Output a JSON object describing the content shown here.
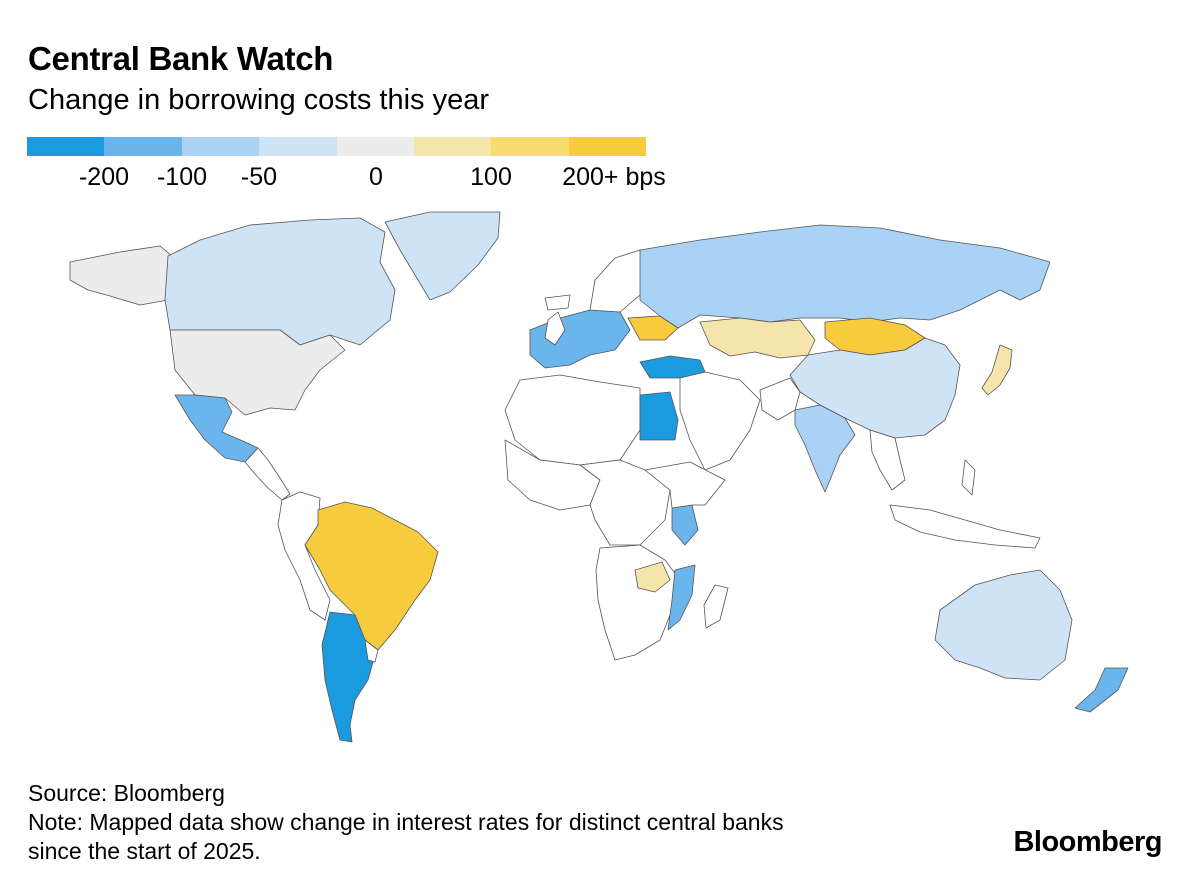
{
  "header": {
    "title": "Central Bank Watch",
    "subtitle": "Change in borrowing costs this year"
  },
  "legend": {
    "swatches": [
      "#1a9be0",
      "#6ab6ec",
      "#a9d2f5",
      "#cfe3f6",
      "#ececec",
      "#f6e5ab",
      "#f8dc6f",
      "#f8cb3f"
    ],
    "ticks": [
      "-200",
      "-100",
      "-50",
      "0",
      "100",
      "200+ bps"
    ]
  },
  "map": {
    "colors": {
      "deep_blue": "#1a9be0",
      "mid_blue": "#6ab6ec",
      "light_blue": "#a9d2f5",
      "pale_blue": "#cfe3f6",
      "neutral": "#ececec",
      "pale_yellow": "#f6e5ab",
      "mid_yellow": "#f8dc6f",
      "deep_yellow": "#f8cb3f",
      "no_data": "#ffffff",
      "border": "#555555"
    },
    "regions": [
      {
        "name": "Canada",
        "color": "pale_blue"
      },
      {
        "name": "Alaska",
        "color": "neutral"
      },
      {
        "name": "United States",
        "color": "neutral"
      },
      {
        "name": "Mexico",
        "color": "mid_blue"
      },
      {
        "name": "Greenland",
        "color": "pale_blue"
      },
      {
        "name": "Brazil",
        "color": "deep_yellow"
      },
      {
        "name": "Argentina",
        "color": "deep_blue"
      },
      {
        "name": "Russia",
        "color": "light_blue"
      },
      {
        "name": "Kazakhstan",
        "color": "pale_yellow"
      },
      {
        "name": "Mongolia",
        "color": "deep_yellow"
      },
      {
        "name": "China",
        "color": "pale_blue"
      },
      {
        "name": "India",
        "color": "light_blue"
      },
      {
        "name": "Japan",
        "color": "pale_yellow"
      },
      {
        "name": "Ukraine",
        "color": "deep_yellow"
      },
      {
        "name": "Turkey",
        "color": "deep_blue"
      },
      {
        "name": "Egypt",
        "color": "deep_blue"
      },
      {
        "name": "Kenya",
        "color": "mid_blue"
      },
      {
        "name": "Mozambique",
        "color": "mid_blue"
      },
      {
        "name": "Zambia",
        "color": "pale_yellow"
      },
      {
        "name": "Australia",
        "color": "pale_blue"
      },
      {
        "name": "New Zealand",
        "color": "mid_blue"
      },
      {
        "name": "Western Europe",
        "color": "mid_blue"
      }
    ]
  },
  "footer": {
    "source": "Source: Bloomberg",
    "note_line1": "Note: Mapped data show change in interest rates for distinct central banks",
    "note_line2": "since the start of 2025."
  },
  "brand": "Bloomberg"
}
